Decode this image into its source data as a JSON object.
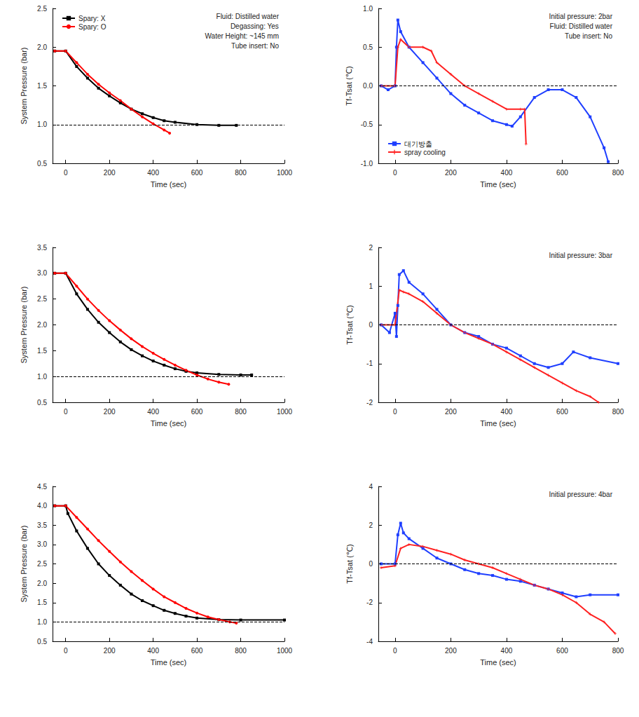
{
  "chart_data": [
    {
      "type": "line",
      "x_label": "Time (sec)",
      "y_label": "System Pressure (bar)",
      "xlim": [
        -60,
        1000
      ],
      "xticks": [
        0,
        200,
        400,
        600,
        800,
        1000
      ],
      "ylim": [
        0.5,
        2.5
      ],
      "yticks": [
        0.5,
        {
          "value": 1,
          "label": "1.0"
        },
        1.5,
        {
          "value": 2,
          "label": "2.0"
        },
        2.5
      ],
      "grid": false,
      "legend": "upper left",
      "hline": 1,
      "annotations": [
        "Fluid: Distilled water",
        "Degassing: Yes",
        "Water Height: ~145 mm",
        "Tube insert: No"
      ],
      "series": [
        {
          "name": "Spary: X",
          "color": "#000000",
          "marker": "square",
          "x": [
            -50,
            0,
            50,
            100,
            150,
            200,
            250,
            300,
            350,
            400,
            450,
            500,
            600,
            700,
            780
          ],
          "values": [
            1.95,
            1.95,
            1.75,
            1.6,
            1.47,
            1.37,
            1.28,
            1.2,
            1.14,
            1.09,
            1.05,
            1.03,
            1.0,
            0.99,
            0.99
          ]
        },
        {
          "name": "Spary: O",
          "color": "#ff0000",
          "marker": "circle",
          "x": [
            -50,
            0,
            50,
            100,
            150,
            200,
            250,
            300,
            350,
            400,
            450,
            475
          ],
          "values": [
            1.95,
            1.95,
            1.8,
            1.65,
            1.52,
            1.41,
            1.31,
            1.2,
            1.1,
            1.01,
            0.93,
            0.89
          ]
        }
      ]
    },
    {
      "type": "line",
      "x_label": "Time (sec)",
      "y_label": "Tf-Tsat (℃)",
      "xlim": [
        -60,
        800
      ],
      "xticks": [
        0,
        200,
        400,
        600,
        800
      ],
      "ylim": [
        -1,
        1
      ],
      "yticks": [
        {
          "value": -1,
          "label": "-1.0"
        },
        -0.5,
        {
          "value": 0,
          "label": "0.0"
        },
        0.5,
        {
          "value": 1,
          "label": "1.0"
        }
      ],
      "grid": false,
      "legend": "lower left",
      "hline": 0,
      "annotations": [
        "Initial pressure: 2bar",
        "Fluid: Distilled water",
        "Tube insert: No"
      ],
      "series": [
        {
          "name": "대기방출",
          "color": "#1f3fff",
          "marker": "square",
          "x": [
            -50,
            -25,
            0,
            5,
            10,
            20,
            50,
            100,
            150,
            200,
            250,
            300,
            350,
            400,
            420,
            450,
            500,
            550,
            600,
            650,
            700,
            750,
            765
          ],
          "values": [
            0.0,
            -0.05,
            0.0,
            0.5,
            0.85,
            0.7,
            0.5,
            0.3,
            0.1,
            -0.1,
            -0.25,
            -0.35,
            -0.45,
            -0.5,
            -0.52,
            -0.4,
            -0.15,
            -0.05,
            -0.05,
            -0.15,
            -0.4,
            -0.8,
            -0.98
          ]
        },
        {
          "name": "spray cooling",
          "color": "#ff2020",
          "marker": "plus",
          "x": [
            -50,
            0,
            10,
            20,
            50,
            100,
            130,
            150,
            200,
            250,
            300,
            350,
            400,
            450,
            465,
            470
          ],
          "values": [
            0.0,
            0.0,
            0.5,
            0.6,
            0.5,
            0.5,
            0.45,
            0.3,
            0.15,
            0.0,
            -0.1,
            -0.2,
            -0.3,
            -0.3,
            -0.3,
            -0.75
          ]
        }
      ]
    },
    {
      "type": "line",
      "x_label": "Time (sec)",
      "y_label": "System Pressure (bar)",
      "xlim": [
        -60,
        1000
      ],
      "xticks": [
        0,
        200,
        400,
        600,
        800,
        1000
      ],
      "ylim": [
        0.5,
        3.5
      ],
      "yticks": [
        0.5,
        {
          "value": 1,
          "label": "1.0"
        },
        1.5,
        {
          "value": 2,
          "label": "2.0"
        },
        2.5,
        {
          "value": 3,
          "label": "3.0"
        },
        3.5
      ],
      "grid": false,
      "hline": 1,
      "series": [
        {
          "color": "#000000",
          "marker": "square",
          "x": [
            -50,
            0,
            50,
            100,
            150,
            200,
            250,
            300,
            350,
            400,
            450,
            500,
            550,
            600,
            700,
            800,
            850
          ],
          "values": [
            3.0,
            3.0,
            2.6,
            2.3,
            2.05,
            1.85,
            1.67,
            1.52,
            1.4,
            1.3,
            1.22,
            1.15,
            1.1,
            1.07,
            1.04,
            1.03,
            1.03
          ]
        },
        {
          "color": "#ff0000",
          "marker": "circle",
          "x": [
            -50,
            0,
            50,
            100,
            150,
            200,
            250,
            300,
            350,
            400,
            450,
            500,
            550,
            600,
            650,
            700,
            745
          ],
          "values": [
            3.0,
            3.0,
            2.75,
            2.5,
            2.28,
            2.08,
            1.9,
            1.73,
            1.58,
            1.45,
            1.33,
            1.22,
            1.12,
            1.03,
            0.95,
            0.89,
            0.85
          ]
        }
      ]
    },
    {
      "type": "line",
      "x_label": "Time (sec)",
      "y_label": "Tf-Tsat (℃)",
      "xlim": [
        -60,
        800
      ],
      "xticks": [
        0,
        200,
        400,
        600,
        800
      ],
      "ylim": [
        -2,
        2
      ],
      "yticks": [
        -2,
        -1,
        0,
        1,
        2
      ],
      "grid": false,
      "hline": 0,
      "annotations": [
        "Initial pressure: 3bar"
      ],
      "series": [
        {
          "color": "#1f3fff",
          "marker": "square",
          "x": [
            -50,
            -20,
            0,
            5,
            10,
            15,
            30,
            50,
            100,
            150,
            200,
            250,
            300,
            350,
            400,
            450,
            500,
            550,
            600,
            640,
            700,
            800
          ],
          "values": [
            0.0,
            -0.2,
            0.3,
            -0.3,
            0.5,
            1.3,
            1.4,
            1.1,
            0.8,
            0.4,
            0.0,
            -0.2,
            -0.3,
            -0.5,
            -0.6,
            -0.8,
            -1.0,
            -1.1,
            -1.0,
            -0.7,
            -0.85,
            -1.0
          ]
        },
        {
          "color": "#ff2020",
          "marker": "plus",
          "x": [
            -50,
            0,
            15,
            30,
            50,
            100,
            150,
            200,
            250,
            300,
            350,
            400,
            450,
            500,
            550,
            600,
            650,
            700,
            730
          ],
          "values": [
            0.0,
            0.0,
            0.9,
            0.85,
            0.8,
            0.6,
            0.3,
            0.0,
            -0.2,
            -0.35,
            -0.5,
            -0.7,
            -0.9,
            -1.1,
            -1.3,
            -1.5,
            -1.7,
            -1.85,
            -2.0
          ]
        }
      ]
    },
    {
      "type": "line",
      "x_label": "Time (sec)",
      "y_label": "System Pressure (bar)",
      "xlim": [
        -60,
        1000
      ],
      "xticks": [
        0,
        200,
        400,
        600,
        800,
        1000
      ],
      "ylim": [
        0.5,
        4.5
      ],
      "yticks": [
        0.5,
        {
          "value": 1,
          "label": "1.0"
        },
        1.5,
        {
          "value": 2,
          "label": "2.0"
        },
        2.5,
        {
          "value": 3,
          "label": "3.0"
        },
        3.5,
        {
          "value": 4,
          "label": "4.0"
        },
        4.5
      ],
      "grid": false,
      "hline": 1,
      "series": [
        {
          "color": "#000000",
          "marker": "square",
          "x": [
            -50,
            0,
            10,
            50,
            100,
            150,
            200,
            250,
            300,
            350,
            400,
            450,
            500,
            550,
            600,
            700,
            800,
            1000
          ],
          "values": [
            4.0,
            4.0,
            3.8,
            3.35,
            2.9,
            2.5,
            2.2,
            1.95,
            1.72,
            1.55,
            1.42,
            1.3,
            1.22,
            1.15,
            1.1,
            1.06,
            1.05,
            1.05
          ]
        },
        {
          "color": "#ff0000",
          "marker": "circle",
          "x": [
            -50,
            0,
            50,
            100,
            150,
            200,
            250,
            300,
            350,
            400,
            450,
            500,
            550,
            600,
            650,
            700,
            750,
            780
          ],
          "values": [
            4.0,
            4.0,
            3.7,
            3.4,
            3.1,
            2.82,
            2.55,
            2.3,
            2.07,
            1.85,
            1.65,
            1.5,
            1.35,
            1.23,
            1.13,
            1.06,
            1.0,
            0.97
          ]
        }
      ]
    },
    {
      "type": "line",
      "x_label": "Time (sec)",
      "y_label": "Tf-Tsat (℃)",
      "xlim": [
        -60,
        800
      ],
      "xticks": [
        0,
        200,
        400,
        600,
        800
      ],
      "ylim": [
        -4,
        4
      ],
      "yticks": [
        -4,
        -2,
        0,
        2,
        4
      ],
      "grid": false,
      "hline": 0,
      "annotations": [
        "Initial pressure: 4bar"
      ],
      "series": [
        {
          "color": "#1f3fff",
          "marker": "square",
          "x": [
            -50,
            0,
            10,
            20,
            30,
            50,
            100,
            150,
            200,
            250,
            300,
            350,
            400,
            450,
            500,
            550,
            600,
            650,
            700,
            800
          ],
          "values": [
            0.0,
            0.0,
            1.5,
            2.1,
            1.6,
            1.3,
            0.8,
            0.3,
            0.0,
            -0.3,
            -0.5,
            -0.6,
            -0.8,
            -0.9,
            -1.1,
            -1.3,
            -1.5,
            -1.7,
            -1.6,
            -1.6
          ]
        },
        {
          "color": "#ff2020",
          "marker": "plus",
          "x": [
            -50,
            0,
            20,
            50,
            100,
            150,
            200,
            250,
            300,
            350,
            400,
            450,
            500,
            550,
            600,
            650,
            700,
            750,
            790
          ],
          "values": [
            -0.2,
            -0.1,
            0.8,
            1.0,
            0.9,
            0.7,
            0.5,
            0.2,
            0.0,
            -0.2,
            -0.5,
            -0.8,
            -1.1,
            -1.3,
            -1.6,
            -2.0,
            -2.6,
            -3.0,
            -3.6
          ]
        }
      ]
    }
  ]
}
